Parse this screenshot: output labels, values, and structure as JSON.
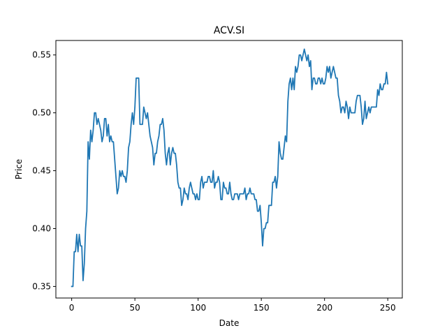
{
  "chart_data": {
    "type": "line",
    "title": "ACV.SI",
    "xlabel": "Date",
    "ylabel": "Price",
    "xlim": [
      -12.5,
      261.5
    ],
    "ylim": [
      0.34,
      0.5625
    ],
    "xticks": [
      0,
      50,
      100,
      150,
      200,
      250
    ],
    "xtick_labels": [
      "0",
      "50",
      "100",
      "150",
      "200",
      "250"
    ],
    "yticks": [
      0.35,
      0.4,
      0.45,
      0.5,
      0.55
    ],
    "ytick_labels": [
      "0.35",
      "0.40",
      "0.45",
      "0.50",
      "0.55"
    ],
    "grid": false,
    "series": [
      {
        "color": "#1f77b4",
        "points": [
          [
            0,
            0.35
          ],
          [
            1,
            0.35
          ],
          [
            2,
            0.38
          ],
          [
            3,
            0.38
          ],
          [
            4,
            0.395
          ],
          [
            5,
            0.38
          ],
          [
            6,
            0.395
          ],
          [
            7,
            0.385
          ],
          [
            8,
            0.385
          ],
          [
            9,
            0.355
          ],
          [
            10,
            0.37
          ],
          [
            11,
            0.4
          ],
          [
            12,
            0.415
          ],
          [
            13,
            0.475
          ],
          [
            14,
            0.46
          ],
          [
            15,
            0.485
          ],
          [
            16,
            0.475
          ],
          [
            17,
            0.485
          ],
          [
            18,
            0.5
          ],
          [
            19,
            0.5
          ],
          [
            20,
            0.49
          ],
          [
            21,
            0.495
          ],
          [
            22,
            0.49
          ],
          [
            23,
            0.485
          ],
          [
            24,
            0.475
          ],
          [
            25,
            0.48
          ],
          [
            26,
            0.495
          ],
          [
            27,
            0.495
          ],
          [
            28,
            0.48
          ],
          [
            29,
            0.49
          ],
          [
            30,
            0.475
          ],
          [
            31,
            0.48
          ],
          [
            32,
            0.475
          ],
          [
            33,
            0.475
          ],
          [
            34,
            0.46
          ],
          [
            35,
            0.445
          ],
          [
            36,
            0.43
          ],
          [
            37,
            0.435
          ],
          [
            38,
            0.45
          ],
          [
            39,
            0.445
          ],
          [
            40,
            0.45
          ],
          [
            41,
            0.445
          ],
          [
            42,
            0.445
          ],
          [
            43,
            0.44
          ],
          [
            44,
            0.45
          ],
          [
            45,
            0.47
          ],
          [
            46,
            0.475
          ],
          [
            47,
            0.49
          ],
          [
            48,
            0.5
          ],
          [
            49,
            0.49
          ],
          [
            50,
            0.505
          ],
          [
            51,
            0.53
          ],
          [
            52,
            0.53
          ],
          [
            53,
            0.53
          ],
          [
            54,
            0.49
          ],
          [
            55,
            0.49
          ],
          [
            56,
            0.49
          ],
          [
            57,
            0.505
          ],
          [
            58,
            0.5
          ],
          [
            59,
            0.495
          ],
          [
            60,
            0.5
          ],
          [
            61,
            0.49
          ],
          [
            62,
            0.48
          ],
          [
            63,
            0.475
          ],
          [
            64,
            0.47
          ],
          [
            65,
            0.455
          ],
          [
            66,
            0.465
          ],
          [
            67,
            0.465
          ],
          [
            68,
            0.475
          ],
          [
            69,
            0.48
          ],
          [
            70,
            0.49
          ],
          [
            71,
            0.49
          ],
          [
            72,
            0.495
          ],
          [
            73,
            0.485
          ],
          [
            74,
            0.465
          ],
          [
            75,
            0.455
          ],
          [
            76,
            0.465
          ],
          [
            77,
            0.47
          ],
          [
            78,
            0.455
          ],
          [
            79,
            0.465
          ],
          [
            80,
            0.47
          ],
          [
            81,
            0.465
          ],
          [
            82,
            0.465
          ],
          [
            83,
            0.455
          ],
          [
            84,
            0.44
          ],
          [
            85,
            0.435
          ],
          [
            86,
            0.435
          ],
          [
            87,
            0.42
          ],
          [
            88,
            0.425
          ],
          [
            89,
            0.435
          ],
          [
            90,
            0.43
          ],
          [
            91,
            0.43
          ],
          [
            92,
            0.425
          ],
          [
            93,
            0.435
          ],
          [
            94,
            0.44
          ],
          [
            95,
            0.435
          ],
          [
            96,
            0.43
          ],
          [
            97,
            0.43
          ],
          [
            98,
            0.425
          ],
          [
            99,
            0.43
          ],
          [
            100,
            0.425
          ],
          [
            101,
            0.425
          ],
          [
            102,
            0.44
          ],
          [
            103,
            0.445
          ],
          [
            104,
            0.435
          ],
          [
            105,
            0.44
          ],
          [
            106,
            0.44
          ],
          [
            107,
            0.44
          ],
          [
            108,
            0.445
          ],
          [
            109,
            0.445
          ],
          [
            110,
            0.44
          ],
          [
            111,
            0.44
          ],
          [
            112,
            0.45
          ],
          [
            113,
            0.435
          ],
          [
            114,
            0.44
          ],
          [
            115,
            0.44
          ],
          [
            116,
            0.445
          ],
          [
            117,
            0.44
          ],
          [
            118,
            0.425
          ],
          [
            119,
            0.425
          ],
          [
            120,
            0.44
          ],
          [
            121,
            0.435
          ],
          [
            122,
            0.435
          ],
          [
            123,
            0.43
          ],
          [
            124,
            0.43
          ],
          [
            125,
            0.44
          ],
          [
            126,
            0.43
          ],
          [
            127,
            0.425
          ],
          [
            128,
            0.425
          ],
          [
            129,
            0.43
          ],
          [
            130,
            0.43
          ],
          [
            131,
            0.43
          ],
          [
            132,
            0.425
          ],
          [
            133,
            0.43
          ],
          [
            134,
            0.43
          ],
          [
            135,
            0.43
          ],
          [
            136,
            0.43
          ],
          [
            137,
            0.435
          ],
          [
            138,
            0.425
          ],
          [
            139,
            0.43
          ],
          [
            140,
            0.43
          ],
          [
            141,
            0.435
          ],
          [
            142,
            0.43
          ],
          [
            143,
            0.43
          ],
          [
            144,
            0.43
          ],
          [
            145,
            0.425
          ],
          [
            146,
            0.425
          ],
          [
            147,
            0.415
          ],
          [
            148,
            0.415
          ],
          [
            149,
            0.42
          ],
          [
            150,
            0.405
          ],
          [
            151,
            0.385
          ],
          [
            152,
            0.4
          ],
          [
            153,
            0.4
          ],
          [
            154,
            0.405
          ],
          [
            155,
            0.405
          ],
          [
            156,
            0.42
          ],
          [
            157,
            0.42
          ],
          [
            158,
            0.42
          ],
          [
            159,
            0.44
          ],
          [
            160,
            0.44
          ],
          [
            161,
            0.445
          ],
          [
            162,
            0.435
          ],
          [
            163,
            0.445
          ],
          [
            164,
            0.475
          ],
          [
            165,
            0.465
          ],
          [
            166,
            0.46
          ],
          [
            167,
            0.46
          ],
          [
            168,
            0.47
          ],
          [
            169,
            0.48
          ],
          [
            170,
            0.475
          ],
          [
            171,
            0.51
          ],
          [
            172,
            0.525
          ],
          [
            173,
            0.53
          ],
          [
            174,
            0.52
          ],
          [
            175,
            0.53
          ],
          [
            176,
            0.52
          ],
          [
            177,
            0.54
          ],
          [
            178,
            0.535
          ],
          [
            179,
            0.54
          ],
          [
            180,
            0.55
          ],
          [
            181,
            0.55
          ],
          [
            182,
            0.545
          ],
          [
            183,
            0.55
          ],
          [
            184,
            0.555
          ],
          [
            185,
            0.55
          ],
          [
            186,
            0.545
          ],
          [
            187,
            0.55
          ],
          [
            188,
            0.54
          ],
          [
            189,
            0.545
          ],
          [
            190,
            0.52
          ],
          [
            191,
            0.53
          ],
          [
            192,
            0.53
          ],
          [
            193,
            0.525
          ],
          [
            194,
            0.525
          ],
          [
            195,
            0.53
          ],
          [
            196,
            0.53
          ],
          [
            197,
            0.525
          ],
          [
            198,
            0.53
          ],
          [
            199,
            0.525
          ],
          [
            200,
            0.525
          ],
          [
            201,
            0.53
          ],
          [
            202,
            0.54
          ],
          [
            203,
            0.535
          ],
          [
            204,
            0.54
          ],
          [
            205,
            0.53
          ],
          [
            206,
            0.535
          ],
          [
            207,
            0.54
          ],
          [
            208,
            0.535
          ],
          [
            209,
            0.53
          ],
          [
            210,
            0.53
          ],
          [
            211,
            0.515
          ],
          [
            212,
            0.51
          ],
          [
            213,
            0.5
          ],
          [
            214,
            0.505
          ],
          [
            215,
            0.505
          ],
          [
            216,
            0.5
          ],
          [
            217,
            0.51
          ],
          [
            218,
            0.505
          ],
          [
            219,
            0.495
          ],
          [
            220,
            0.505
          ],
          [
            221,
            0.5
          ],
          [
            222,
            0.5
          ],
          [
            223,
            0.5
          ],
          [
            224,
            0.5
          ],
          [
            225,
            0.51
          ],
          [
            226,
            0.515
          ],
          [
            227,
            0.515
          ],
          [
            228,
            0.515
          ],
          [
            229,
            0.505
          ],
          [
            230,
            0.49
          ],
          [
            231,
            0.495
          ],
          [
            232,
            0.51
          ],
          [
            233,
            0.495
          ],
          [
            234,
            0.5
          ],
          [
            235,
            0.505
          ],
          [
            236,
            0.5
          ],
          [
            237,
            0.505
          ],
          [
            238,
            0.505
          ],
          [
            239,
            0.505
          ],
          [
            240,
            0.505
          ],
          [
            241,
            0.505
          ],
          [
            242,
            0.52
          ],
          [
            243,
            0.515
          ],
          [
            244,
            0.525
          ],
          [
            245,
            0.52
          ],
          [
            246,
            0.52
          ],
          [
            247,
            0.525
          ],
          [
            248,
            0.525
          ],
          [
            249,
            0.535
          ],
          [
            250,
            0.525
          ]
        ]
      }
    ]
  }
}
